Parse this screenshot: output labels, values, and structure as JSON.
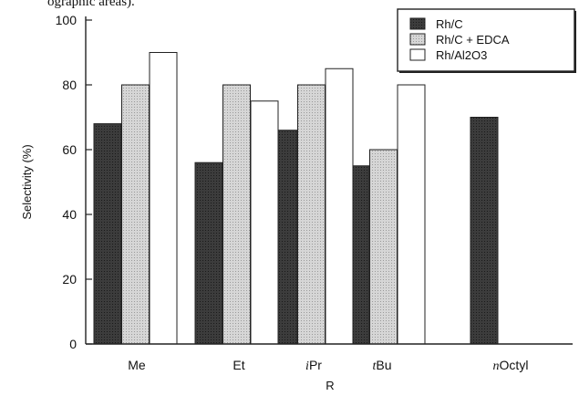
{
  "top_note": "ographic areas).",
  "chart_data": {
    "type": "bar",
    "categories": [
      "Me",
      "Et",
      "iPr",
      "tBu",
      "nOctyl"
    ],
    "category_prefix": [
      "",
      "",
      "i",
      "t",
      "n"
    ],
    "category_main": [
      "Me",
      "Et",
      "Pr",
      "Bu",
      "Octyl"
    ],
    "series": [
      {
        "name": "Rh/C",
        "values": [
          68,
          56,
          66,
          55,
          70
        ],
        "color": "#3a3a3a"
      },
      {
        "name": "Rh/C + EDCA",
        "values": [
          80,
          80,
          80,
          60,
          null
        ],
        "color": "#cfcfcf"
      },
      {
        "name": "Rh/Al2O3",
        "values": [
          90,
          75,
          85,
          80,
          null
        ],
        "color": "#ffffff"
      }
    ],
    "xlabel": "R",
    "ylabel": "Selectivity (%)",
    "ylim": [
      0,
      100
    ],
    "yticks": [
      0,
      20,
      40,
      60,
      80,
      100
    ],
    "legend_position": "top-right",
    "grid": false
  }
}
